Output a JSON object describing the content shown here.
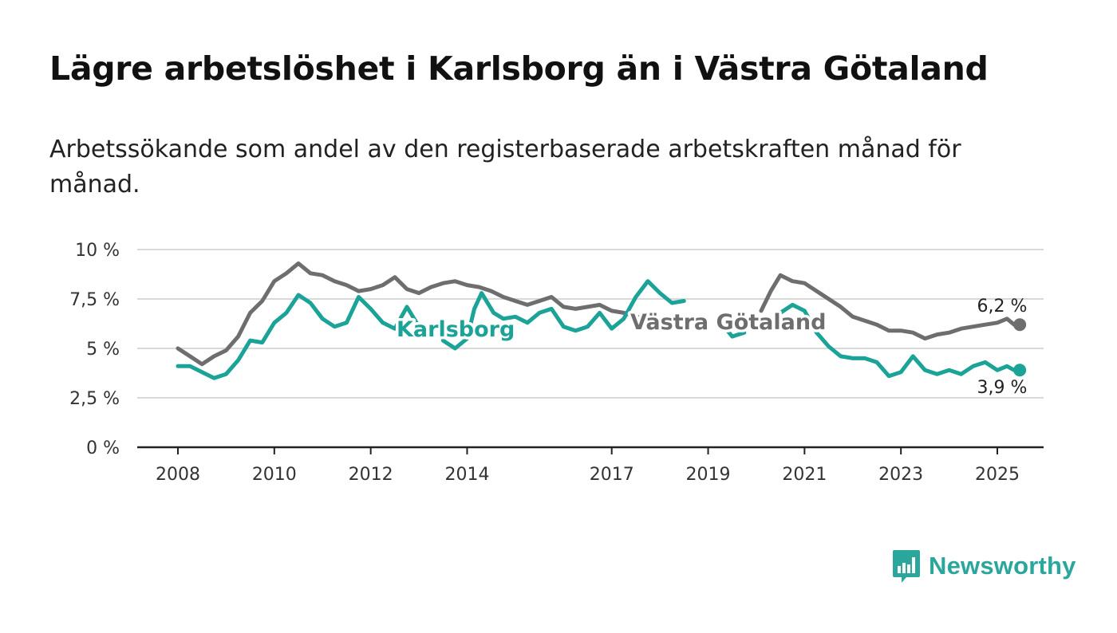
{
  "chart_data": {
    "type": "line",
    "title": "Lägre arbetslöshet i Karlsborg än i Västra Götaland",
    "subtitle": "Arbetssökande som andel av den registerbaserade arbetskraften månad för månad.",
    "xlabel": "",
    "ylabel": "",
    "xlim": [
      2008,
      2025.6
    ],
    "ylim": [
      0,
      10
    ],
    "y_ticks": [
      0,
      2.5,
      5,
      7.5,
      10
    ],
    "y_tick_labels": [
      "0 %",
      "2,5 %",
      "5 %",
      "7,5 %",
      "10 %"
    ],
    "x_ticks": [
      2008,
      2010,
      2012,
      2014,
      2017,
      2019,
      2021,
      2023,
      2025
    ],
    "x_tick_labels": [
      "2008",
      "2010",
      "2012",
      "2014",
      "2017",
      "2019",
      "2021",
      "2023",
      "2025"
    ],
    "grid": true,
    "series": [
      {
        "name": "Västra Götaland",
        "color": "#6e6e6e",
        "end_label": "6,2 %",
        "segments": [
          [
            [
              2008.0,
              5.0
            ],
            [
              2008.25,
              4.6
            ],
            [
              2008.5,
              4.2
            ],
            [
              2008.75,
              4.6
            ],
            [
              2009.0,
              4.9
            ],
            [
              2009.25,
              5.6
            ],
            [
              2009.5,
              6.8
            ],
            [
              2009.75,
              7.4
            ],
            [
              2010.0,
              8.4
            ],
            [
              2010.25,
              8.8
            ],
            [
              2010.5,
              9.3
            ],
            [
              2010.75,
              8.8
            ],
            [
              2011.0,
              8.7
            ],
            [
              2011.25,
              8.4
            ],
            [
              2011.5,
              8.2
            ],
            [
              2011.75,
              7.9
            ],
            [
              2012.0,
              8.0
            ],
            [
              2012.25,
              8.2
            ],
            [
              2012.5,
              8.6
            ],
            [
              2012.75,
              8.0
            ],
            [
              2013.0,
              7.8
            ],
            [
              2013.25,
              8.1
            ],
            [
              2013.5,
              8.3
            ],
            [
              2013.75,
              8.4
            ],
            [
              2014.0,
              8.2
            ],
            [
              2014.25,
              8.1
            ],
            [
              2014.5,
              7.9
            ],
            [
              2014.75,
              7.6
            ],
            [
              2015.0,
              7.4
            ],
            [
              2015.25,
              7.2
            ],
            [
              2015.5,
              7.4
            ],
            [
              2015.75,
              7.6
            ],
            [
              2016.0,
              7.1
            ],
            [
              2016.25,
              7.0
            ],
            [
              2016.5,
              7.1
            ],
            [
              2016.75,
              7.2
            ],
            [
              2017.0,
              6.9
            ],
            [
              2017.25,
              6.8
            ],
            [
              2017.5,
              6.6
            ],
            [
              2017.75,
              6.5
            ]
          ],
          [
            [
              2020.1,
              6.9
            ],
            [
              2020.3,
              7.9
            ],
            [
              2020.5,
              8.7
            ],
            [
              2020.75,
              8.4
            ],
            [
              2021.0,
              8.3
            ],
            [
              2021.25,
              7.9
            ],
            [
              2021.5,
              7.5
            ],
            [
              2021.75,
              7.1
            ],
            [
              2022.0,
              6.6
            ],
            [
              2022.25,
              6.4
            ],
            [
              2022.5,
              6.2
            ],
            [
              2022.75,
              5.9
            ],
            [
              2023.0,
              5.9
            ],
            [
              2023.25,
              5.8
            ],
            [
              2023.5,
              5.5
            ],
            [
              2023.75,
              5.7
            ],
            [
              2024.0,
              5.8
            ],
            [
              2024.25,
              6.0
            ],
            [
              2024.5,
              6.1
            ],
            [
              2024.75,
              6.2
            ],
            [
              2025.0,
              6.3
            ],
            [
              2025.2,
              6.5
            ],
            [
              2025.35,
              6.2
            ]
          ]
        ]
      },
      {
        "name": "Karlsborg",
        "color": "#1ba398",
        "end_label": "3,9 %",
        "segments": [
          [
            [
              2008.0,
              4.1
            ],
            [
              2008.25,
              4.1
            ],
            [
              2008.5,
              3.8
            ],
            [
              2008.75,
              3.5
            ],
            [
              2009.0,
              3.7
            ],
            [
              2009.25,
              4.4
            ],
            [
              2009.5,
              5.4
            ],
            [
              2009.75,
              5.3
            ],
            [
              2010.0,
              6.3
            ],
            [
              2010.25,
              6.8
            ],
            [
              2010.5,
              7.7
            ],
            [
              2010.75,
              7.3
            ],
            [
              2011.0,
              6.5
            ],
            [
              2011.25,
              6.1
            ],
            [
              2011.5,
              6.3
            ],
            [
              2011.75,
              7.6
            ],
            [
              2012.0,
              7.0
            ],
            [
              2012.25,
              6.3
            ],
            [
              2012.5,
              6.0
            ],
            [
              2012.75,
              7.1
            ],
            [
              2013.0,
              6.1
            ],
            [
              2013.25,
              5.9
            ]
          ],
          [
            [
              2013.5,
              5.4
            ],
            [
              2013.75,
              5.0
            ],
            [
              2014.0,
              5.5
            ],
            [
              2014.15,
              7.0
            ],
            [
              2014.3,
              7.8
            ],
            [
              2014.55,
              6.8
            ],
            [
              2014.75,
              6.5
            ],
            [
              2015.0,
              6.6
            ],
            [
              2015.25,
              6.3
            ],
            [
              2015.5,
              6.8
            ],
            [
              2015.75,
              7.0
            ],
            [
              2016.0,
              6.1
            ],
            [
              2016.25,
              5.9
            ],
            [
              2016.5,
              6.1
            ],
            [
              2016.75,
              6.8
            ],
            [
              2017.0,
              6.0
            ],
            [
              2017.25,
              6.5
            ],
            [
              2017.5,
              7.6
            ],
            [
              2017.75,
              8.4
            ],
            [
              2018.0,
              7.8
            ],
            [
              2018.25,
              7.3
            ],
            [
              2018.5,
              7.4
            ]
          ],
          [
            [
              2019.3,
              6.2
            ],
            [
              2019.5,
              5.6
            ],
            [
              2019.75,
              5.8
            ]
          ],
          [
            [
              2020.5,
              6.8
            ],
            [
              2020.75,
              7.2
            ],
            [
              2021.0,
              6.9
            ],
            [
              2021.25,
              5.8
            ],
            [
              2021.5,
              5.1
            ],
            [
              2021.75,
              4.6
            ],
            [
              2022.0,
              4.5
            ],
            [
              2022.25,
              4.5
            ],
            [
              2022.5,
              4.3
            ],
            [
              2022.75,
              3.6
            ],
            [
              2023.0,
              3.8
            ],
            [
              2023.25,
              4.6
            ],
            [
              2023.5,
              3.9
            ],
            [
              2023.75,
              3.7
            ],
            [
              2024.0,
              3.9
            ],
            [
              2024.25,
              3.7
            ],
            [
              2024.5,
              4.1
            ],
            [
              2024.75,
              4.3
            ],
            [
              2025.0,
              3.9
            ],
            [
              2025.2,
              4.1
            ],
            [
              2025.35,
              3.9
            ]
          ]
        ]
      }
    ]
  },
  "brand": {
    "name": "Newsworthy",
    "color": "#2aa69d"
  },
  "colors": {
    "gridline": "#d9d9d9",
    "axis": "#222222"
  }
}
